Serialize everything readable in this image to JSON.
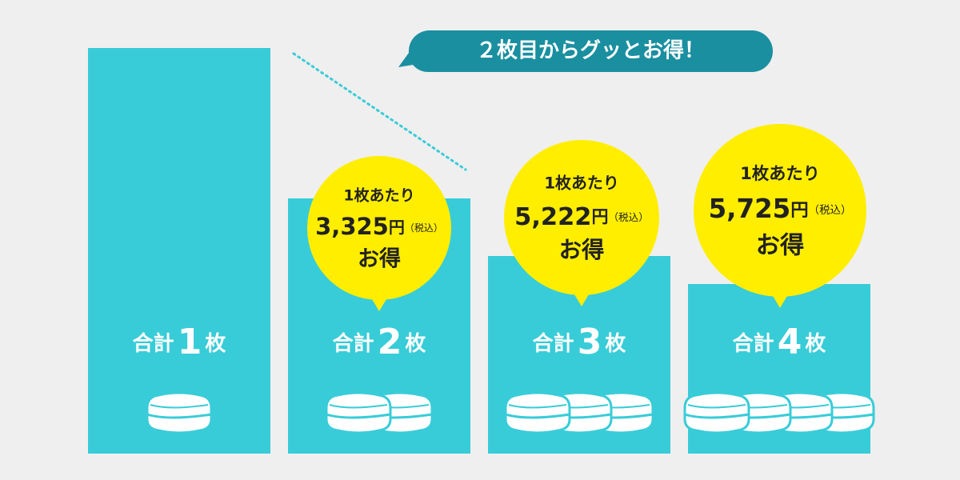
{
  "banner": "２枚目からグッとお得！",
  "columns": [
    {
      "prefix": "合計",
      "count": "1",
      "unit": "枚"
    },
    {
      "prefix": "合計",
      "count": "2",
      "unit": "枚",
      "badge": {
        "heading": "1枚あたり",
        "amount": "3,325",
        "currency": "円",
        "tax": "（税込）",
        "footer": "お得"
      }
    },
    {
      "prefix": "合計",
      "count": "3",
      "unit": "枚",
      "badge": {
        "heading": "1枚あたり",
        "amount": "5,222",
        "currency": "円",
        "tax": "（税込）",
        "footer": "お得"
      }
    },
    {
      "prefix": "合計",
      "count": "4",
      "unit": "枚",
      "badge": {
        "heading": "1枚あたり",
        "amount": "5,725",
        "currency": "円",
        "tax": "（税込）",
        "footer": "お得"
      }
    }
  ]
}
